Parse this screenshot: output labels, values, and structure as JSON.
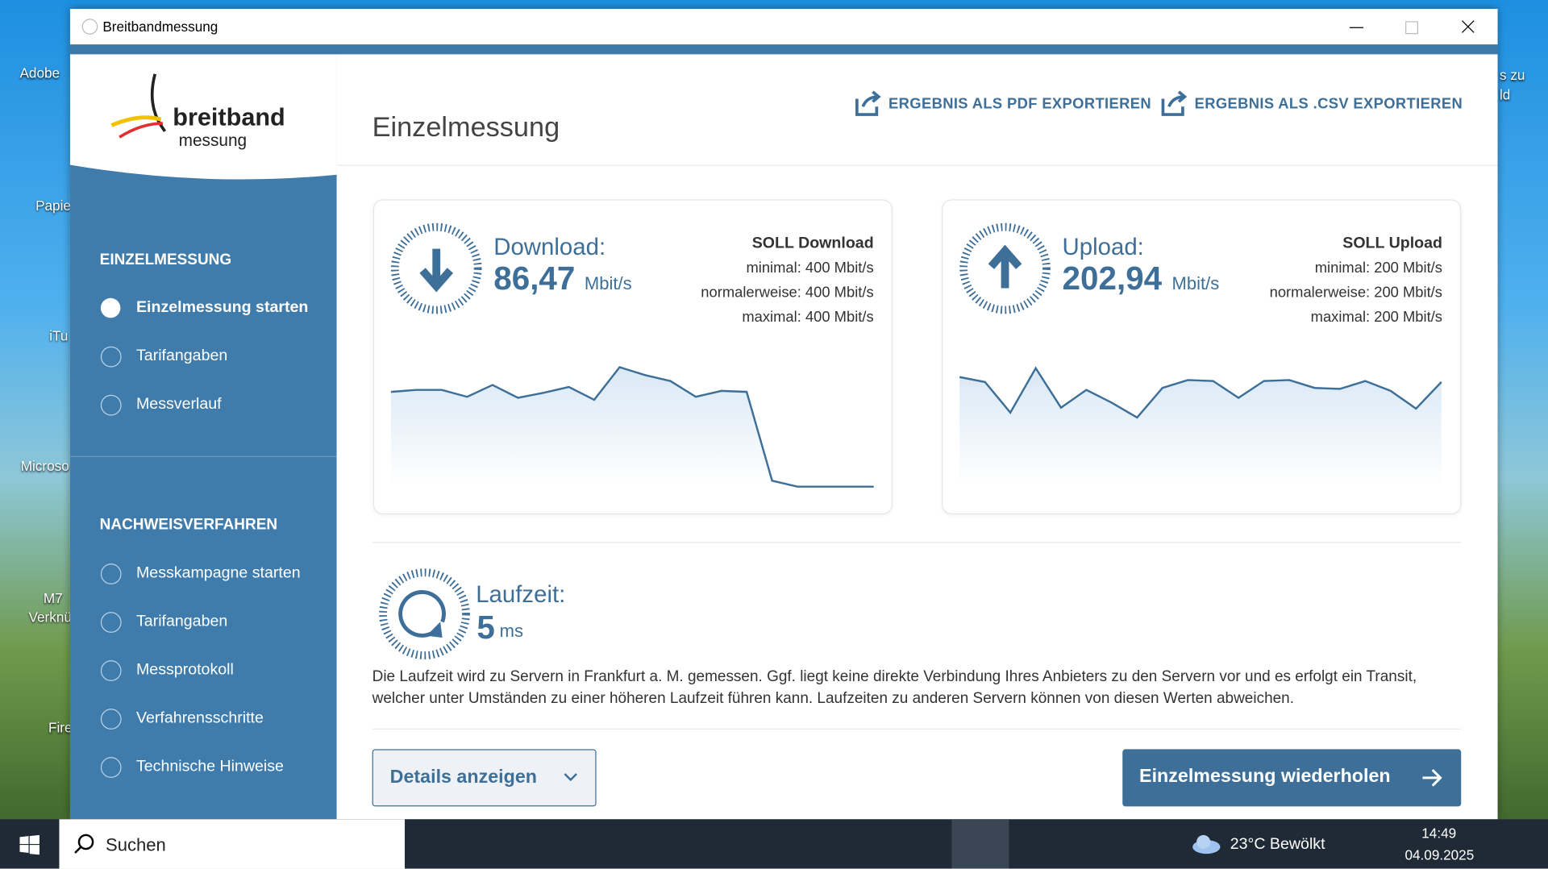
{
  "desktop": {
    "icons": [
      "Adobe",
      "Papie",
      "iTu",
      "Microso",
      "M7",
      "Verknü",
      "Fire"
    ],
    "right_text": [
      "s zu",
      "ld"
    ]
  },
  "window": {
    "title": "Breitbandmessung"
  },
  "sidebar": {
    "logo_top": "breitband",
    "logo_bottom": "messung",
    "sections": [
      {
        "heading": "EINZELMESSUNG",
        "items": [
          "Einzelmessung starten",
          "Tarifangaben",
          "Messverlauf"
        ]
      },
      {
        "heading": "NACHWEISVERFAHREN",
        "items": [
          "Messkampagne starten",
          "Tarifangaben",
          "Messprotokoll",
          "Verfahrensschritte",
          "Technische Hinweise"
        ]
      }
    ]
  },
  "header": {
    "title": "Einzelmessung",
    "export_pdf": "ERGEBNIS ALS PDF EXPORTIEREN",
    "export_csv": "ERGEBNIS ALS .CSV EXPORTIEREN"
  },
  "download": {
    "label": "Download:",
    "value": "86,47",
    "unit": "Mbit/s",
    "soll_title": "SOLL Download",
    "soll": [
      "minimal: 400 Mbit/s",
      "normalerweise: 400 Mbit/s",
      "maximal: 400 Mbit/s"
    ],
    "graph": [
      96,
      98,
      98,
      91,
      103,
      90,
      95,
      101,
      88,
      121,
      113,
      107,
      91,
      97,
      96,
      6,
      0,
      0,
      0,
      0
    ]
  },
  "upload": {
    "label": "Upload:",
    "value": "202,94",
    "unit": "Mbit/s",
    "soll_title": "SOLL Upload",
    "soll": [
      "minimal: 200 Mbit/s",
      "normalerweise: 200 Mbit/s",
      "maximal: 200 Mbit/s"
    ],
    "graph": [
      111,
      106,
      75,
      120,
      80,
      98,
      85,
      70,
      100,
      108,
      107,
      90,
      107,
      108,
      100,
      99,
      107,
      97,
      79,
      106
    ]
  },
  "latency": {
    "label": "Laufzeit:",
    "value": "5",
    "unit": "ms",
    "note": "Die Laufzeit wird zu Servern in Frankfurt a. M. gemessen. Ggf. liegt keine direkte Verbindung Ihres Anbieters zu den Servern vor und es erfolgt ein Transit, welcher unter Umständen zu einer höheren Laufzeit führen kann. Laufzeiten zu anderen Servern können von diesen Werten abweichen."
  },
  "buttons": {
    "details": "Details anzeigen",
    "repeat": "Einzelmessung wiederholen"
  },
  "taskbar": {
    "search": "Suchen",
    "weather": "23°C  Bewölkt",
    "time": "14:49",
    "date": "04.09.2025"
  }
}
